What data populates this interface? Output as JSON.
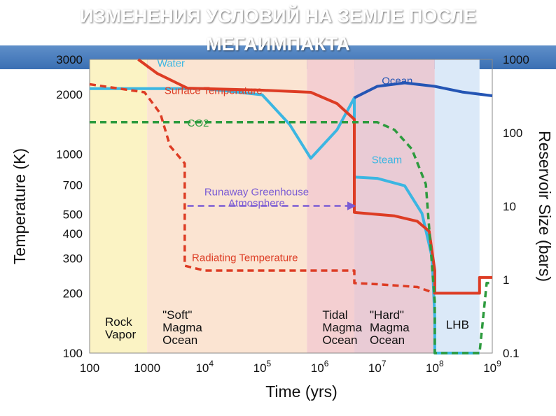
{
  "slide": {
    "title_line1": "ИЗМЕНЕНИЯ УСЛОВИЙ НА ЗЕМЛЕ ПОСЛЕ",
    "title_line2": "МЕГАИМПАКТА"
  },
  "chart_data": {
    "type": "line",
    "title": "",
    "xlabel": "Time (yrs)",
    "ylabel": "Temperature (K)",
    "y2label": "Reservoir Size (bars)",
    "x_scale": "log",
    "xlim": [
      100,
      1000000000
    ],
    "ylim": [
      100,
      3000
    ],
    "y2lim": [
      0.1,
      1000
    ],
    "x_ticks": [
      {
        "label": "100",
        "value": 100
      },
      {
        "label": "1000",
        "value": 1000
      },
      {
        "label": "10",
        "sup": "4",
        "value": 10000
      },
      {
        "label": "10",
        "sup": "5",
        "value": 100000
      },
      {
        "label": "10",
        "sup": "6",
        "value": 1000000
      },
      {
        "label": "10",
        "sup": "7",
        "value": 10000000
      },
      {
        "label": "10",
        "sup": "8",
        "value": 100000000
      },
      {
        "label": "10",
        "sup": "9",
        "value": 1000000000
      }
    ],
    "y_ticks": [
      {
        "label": "3000",
        "value": 3000
      },
      {
        "label": "2000",
        "value": 2000
      },
      {
        "label": "1000",
        "value": 1000
      },
      {
        "label": "700",
        "value": 700
      },
      {
        "label": "500",
        "value": 500
      },
      {
        "label": "400",
        "value": 400
      },
      {
        "label": "300",
        "value": 300
      },
      {
        "label": "200",
        "value": 200
      },
      {
        "label": "100",
        "value": 100
      }
    ],
    "y2_ticks": [
      {
        "label": "1000",
        "value": 1000
      },
      {
        "label": "100",
        "value": 100
      },
      {
        "label": "10",
        "value": 10
      },
      {
        "label": "1",
        "value": 1
      },
      {
        "label": "0.1",
        "value": 0.1
      }
    ],
    "phases": [
      {
        "name": "rock-vapor",
        "label_lines": [
          "Rock",
          "Vapor"
        ],
        "x_start": 100,
        "x_end": 1000,
        "color": "#fbf3c4"
      },
      {
        "name": "soft-magma",
        "label_lines": [
          "\"Soft\"",
          "Magma",
          "Ocean"
        ],
        "x_start": 1000,
        "x_end": 600000,
        "color": "#fbe4d2"
      },
      {
        "name": "tidal-magma",
        "label_lines": [
          "Tidal",
          "Magma",
          "Ocean"
        ],
        "x_start": 600000,
        "x_end": 4000000,
        "color": "#f4cfd1"
      },
      {
        "name": "hard-magma",
        "label_lines": [
          "\"Hard\"",
          "Magma",
          "Ocean"
        ],
        "x_start": 4000000,
        "x_end": 100000000,
        "color": "#e9cbd5"
      },
      {
        "name": "lhb",
        "label_lines": [
          "LHB"
        ],
        "x_start": 100000000,
        "x_end": 600000000,
        "color": "#dbe9f8"
      }
    ],
    "series": [
      {
        "name": "Water",
        "axis": "right",
        "color": "#3bb6e2",
        "dash": false,
        "width": 4,
        "points": [
          [
            100,
            400
          ],
          [
            10000,
            400
          ],
          [
            100000,
            330
          ],
          [
            300000,
            130
          ],
          [
            700000,
            45
          ],
          [
            2000000,
            110
          ],
          [
            4000000,
            300
          ],
          [
            4000000,
            25
          ],
          [
            10000000,
            24
          ],
          [
            30000000,
            19
          ],
          [
            60000000,
            8
          ],
          [
            90000000,
            2
          ],
          [
            100000000,
            0.3
          ],
          [
            100000000,
            0.1
          ],
          [
            600000000,
            0.1
          ]
        ]
      },
      {
        "name": "Ocean",
        "axis": "right",
        "color": "#2455b4",
        "dash": false,
        "width": 4,
        "points": [
          [
            4000000,
            300
          ],
          [
            10000000,
            430
          ],
          [
            30000000,
            480
          ],
          [
            100000000,
            430
          ],
          [
            300000000,
            360
          ],
          [
            1000000000,
            320
          ]
        ]
      },
      {
        "name": "Surface Temperature",
        "axis": "left",
        "color": "#dd3c24",
        "dash": false,
        "width": 4,
        "points": [
          [
            700,
            3000
          ],
          [
            1500,
            2550
          ],
          [
            5000,
            2150
          ],
          [
            100000,
            2100
          ],
          [
            700000,
            2050
          ],
          [
            2000000,
            1800
          ],
          [
            4000000,
            1500
          ],
          [
            4000000,
            510
          ],
          [
            20000000,
            490
          ],
          [
            50000000,
            460
          ],
          [
            80000000,
            410
          ],
          [
            100000000,
            260
          ],
          [
            100000000,
            200
          ],
          [
            500000000,
            200
          ],
          [
            600000000,
            200
          ],
          [
            600000000,
            240
          ],
          [
            1000000000,
            240
          ]
        ]
      },
      {
        "name": "Radiating Temperature",
        "axis": "left",
        "color": "#dd3c24",
        "dash": true,
        "width": 3.5,
        "points": [
          [
            100,
            2250
          ],
          [
            900,
            2050
          ],
          [
            1700,
            1600
          ],
          [
            2500,
            1100
          ],
          [
            4500,
            900
          ],
          [
            4500,
            275
          ],
          [
            10000,
            260
          ],
          [
            600000,
            260
          ],
          [
            4000000,
            260
          ],
          [
            4000000,
            225
          ],
          [
            10000000,
            222
          ],
          [
            50000000,
            215
          ],
          [
            100000000,
            200
          ]
        ]
      },
      {
        "name": "CO2",
        "axis": "right",
        "color": "#2d9b3e",
        "dash": true,
        "width": 3.5,
        "points": [
          [
            100,
            140
          ],
          [
            10000000,
            140
          ],
          [
            20000000,
            110
          ],
          [
            40000000,
            60
          ],
          [
            70000000,
            20
          ],
          [
            100000000,
            0.5
          ],
          [
            100000000,
            0.1
          ],
          [
            600000000,
            0.1
          ],
          [
            800000000,
            0.9
          ],
          [
            1000000000,
            0.9
          ]
        ]
      },
      {
        "name": "Runaway Greenhouse Atmosphere",
        "axis": "left",
        "color": "#7a5bd4",
        "dash": true,
        "width": 2.5,
        "arrow": true,
        "points": [
          [
            5000,
            550
          ],
          [
            4000000,
            550
          ]
        ]
      }
    ],
    "annotations": [
      {
        "name": "water-label",
        "lines": [
          "Water"
        ],
        "x": 1500,
        "y": 2750,
        "axis": "left",
        "color": "#3bb6e2"
      },
      {
        "name": "ocean-label",
        "lines": [
          "Ocean"
        ],
        "x": 12000000,
        "y": 2250,
        "axis": "left",
        "color": "#2455b4"
      },
      {
        "name": "surface-temp-label",
        "lines": [
          "Surface Temperature"
        ],
        "x": 2000,
        "y": 2010,
        "axis": "left",
        "color": "#dd3c24"
      },
      {
        "name": "co2-label",
        "lines": [
          "CO2"
        ],
        "x": 5000,
        "y": 1380,
        "axis": "left",
        "color": "#2d9b3e"
      },
      {
        "name": "steam-label",
        "lines": [
          "Steam"
        ],
        "x": 8000000,
        "y": 900,
        "axis": "left",
        "color": "#3bb6e2"
      },
      {
        "name": "runaway-label",
        "lines": [
          "Runaway Greenhouse",
          "Atmosphere"
        ],
        "x": 80000,
        "y": 620,
        "axis": "left",
        "color": "#7a5bd4",
        "anchor": "middle"
      },
      {
        "name": "radiating-temp-label",
        "lines": [
          "Radiating Temperature"
        ],
        "x": 6000,
        "y": 290,
        "axis": "left",
        "color": "#dd3c24"
      }
    ]
  }
}
